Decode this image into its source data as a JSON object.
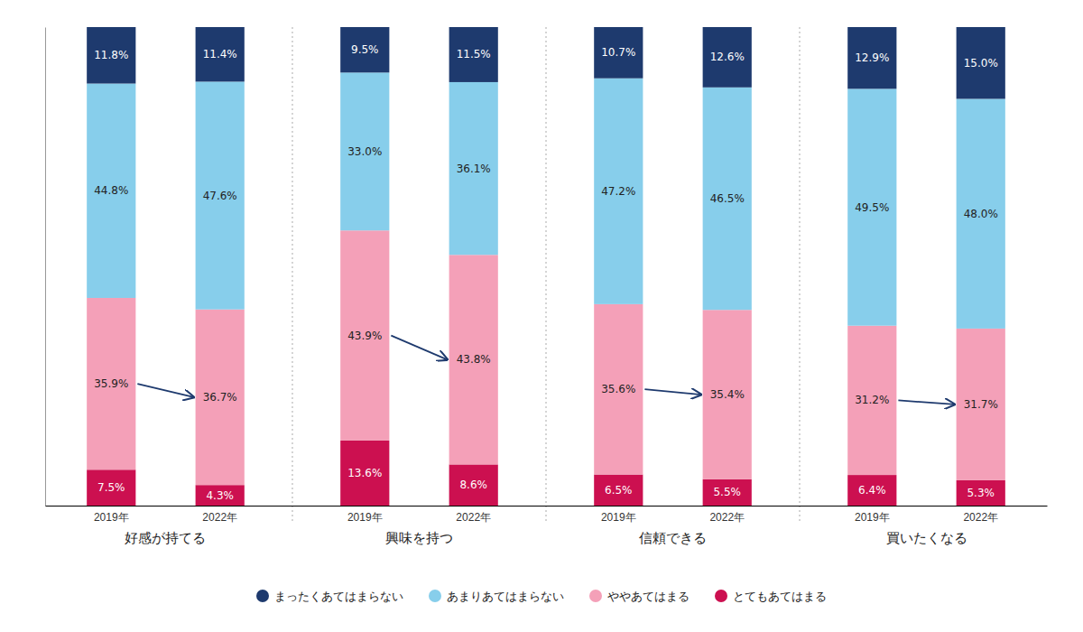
{
  "chart_data": {
    "type": "bar",
    "stacked": true,
    "data_labels": true,
    "tick_labels": "x",
    "grid": false,
    "legend": "bottom",
    "categories": [
      "好感が持てる",
      "興味を持つ",
      "信頼できる",
      "買いたくなる"
    ],
    "years": [
      "2019年",
      "2022年"
    ],
    "ylim": [
      0,
      100
    ],
    "series": [
      {
        "name": "とてもあてはまる",
        "color": "#cc1050",
        "values": [
          [
            7.5,
            4.3
          ],
          [
            13.6,
            8.6
          ],
          [
            6.5,
            5.5
          ],
          [
            6.4,
            5.3
          ]
        ],
        "value_labels": [
          [
            "7.5%",
            "4.3%"
          ],
          [
            "13.6%",
            "8.6%"
          ],
          [
            "6.5%",
            "5.5%"
          ],
          [
            "6.4%",
            "5.3%"
          ]
        ]
      },
      {
        "name": "ややあてはまる",
        "color": "#f4a0b8",
        "values": [
          [
            35.9,
            36.7
          ],
          [
            43.9,
            43.8
          ],
          [
            35.6,
            35.4
          ],
          [
            31.2,
            31.7
          ]
        ],
        "value_labels": [
          [
            "35.9%",
            "36.7%"
          ],
          [
            "43.9%",
            "43.8%"
          ],
          [
            "35.6%",
            "35.4%"
          ],
          [
            "31.2%",
            "31.7%"
          ]
        ]
      },
      {
        "name": "あまりあてはまらない",
        "color": "#87ceeb",
        "values": [
          [
            44.8,
            47.6
          ],
          [
            33.0,
            36.1
          ],
          [
            47.2,
            46.5
          ],
          [
            49.5,
            48.0
          ]
        ],
        "value_labels": [
          [
            "44.8%",
            "47.6%"
          ],
          [
            "33.0%",
            "36.1%"
          ],
          [
            "47.2%",
            "46.5%"
          ],
          [
            "49.5%",
            "48.0%"
          ]
        ]
      },
      {
        "name": "まったくあてはまらない",
        "color": "#1e3a6e",
        "values": [
          [
            11.8,
            11.4
          ],
          [
            9.5,
            11.5
          ],
          [
            10.7,
            12.6
          ],
          [
            12.9,
            15.0
          ]
        ],
        "value_labels": [
          [
            "11.8%",
            "11.4%"
          ],
          [
            "9.5%",
            "11.5%"
          ],
          [
            "10.7%",
            "12.6%"
          ],
          [
            "12.9%",
            "15.0%"
          ]
        ]
      }
    ]
  }
}
